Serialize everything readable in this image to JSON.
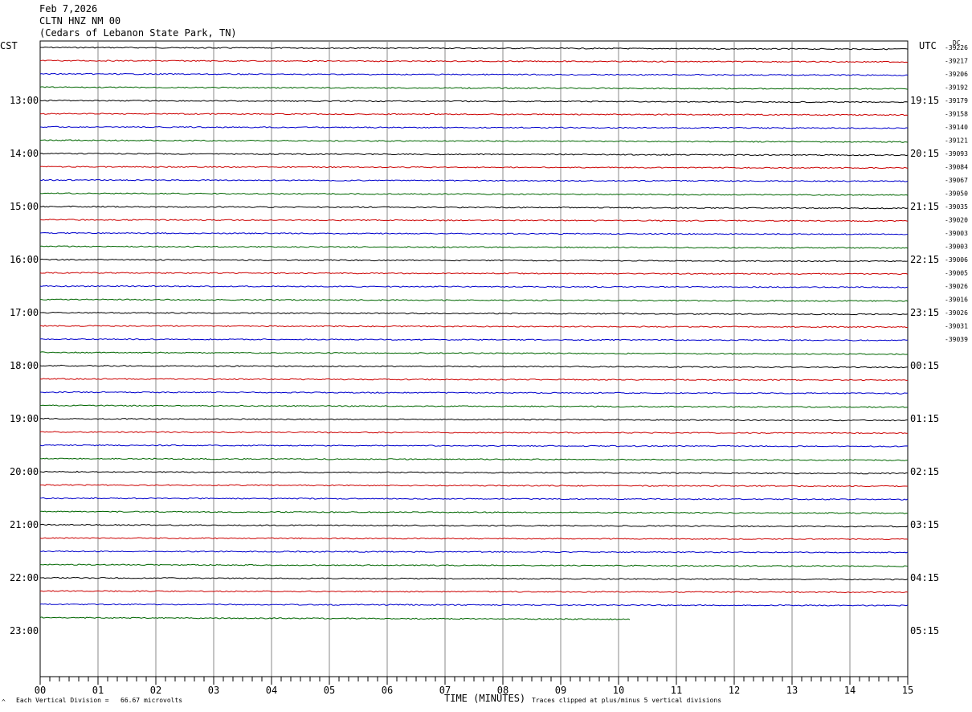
{
  "header": {
    "date": "Feb 7,2026",
    "station": "CLTN HNZ NM 00",
    "location": "(Cedars of Lebanon State Park, TN)"
  },
  "left_zone_label": "CST",
  "right_zone_label": "UTC",
  "dc_label": "DC",
  "footer": {
    "vertical_division": "Each Vertical Division =   66.67 microvolts",
    "time_label": "TIME (MINUTES)",
    "clip_note": "Traces clipped at plus/minus 5 vertical divisions",
    "corner_mark": "^"
  },
  "colors": {
    "trace_cycle": [
      "#000000",
      "#cc0000",
      "#0000cc",
      "#006600"
    ],
    "grid": "#888888"
  },
  "chart_data": {
    "type": "line",
    "xlabel": "TIME (MINUTES)",
    "xlim": [
      0,
      15
    ],
    "x_ticks": [
      "00",
      "01",
      "02",
      "03",
      "04",
      "05",
      "06",
      "07",
      "08",
      "09",
      "10",
      "11",
      "12",
      "13",
      "14",
      "15"
    ],
    "hour_labels_cst": [
      "13:00",
      "14:00",
      "15:00",
      "16:00",
      "17:00",
      "18:00",
      "19:00",
      "20:00",
      "21:00",
      "22:00",
      "23:00"
    ],
    "hour_labels_utc": [
      "19:15",
      "20:15",
      "21:15",
      "22:15",
      "23:15",
      "00:15",
      "01:15",
      "02:15",
      "03:15",
      "04:15",
      "05:15"
    ],
    "trace_rows_total": 44,
    "first_trace_row": -4,
    "last_row_end_minute": 10.2,
    "dc_offsets": [
      "-39226",
      "-39217",
      "-39206",
      "-39192",
      "-39179",
      "-39158",
      "-39140",
      "-39121",
      "-39093",
      "-39084",
      "-39067",
      "-39050",
      "-39035",
      "-39020",
      "-39003",
      "-39003",
      "-39006",
      "-39005",
      "-39026",
      "-39016",
      "-39026",
      "-39031",
      "-39039"
    ],
    "series": [
      {
        "values": [
          0.0,
          0.1,
          0.15,
          0.2,
          0.3,
          0.35
        ]
      },
      {
        "values": [
          0.0,
          0.05,
          0.1,
          0.15,
          0.2,
          0.25
        ]
      },
      {
        "values": [
          0.0,
          0.05,
          0.1,
          0.15,
          0.2,
          0.25
        ]
      },
      {
        "values": [
          0.0,
          0.1,
          0.15,
          0.2,
          0.3,
          0.35
        ]
      }
    ]
  }
}
